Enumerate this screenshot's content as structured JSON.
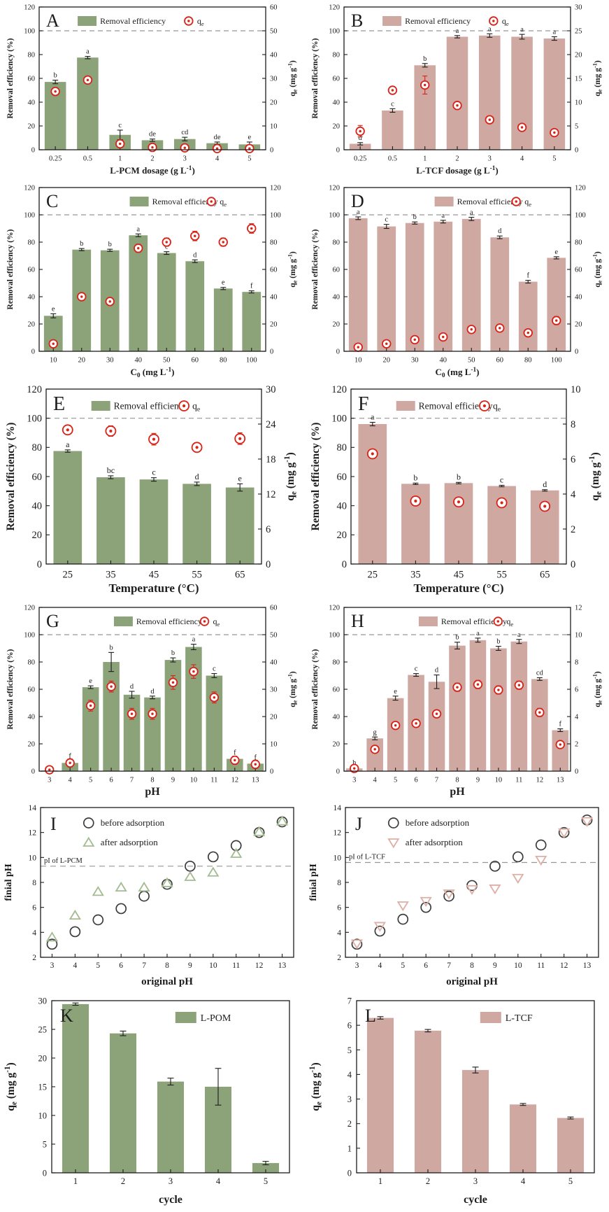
{
  "colors": {
    "green_bar": "#8ca379",
    "pink_bar": "#cfa8a2",
    "qe_red": "#d92318",
    "dash_gray": "#969696",
    "axis_black": "#1c1c1c",
    "scatter_circle": "#3c3c3c",
    "green_triangle": "#a3bb90",
    "pink_triangle": "#ddafa7"
  },
  "chart_data": [
    {
      "id": "A",
      "type": "dual-bar",
      "letter": "A",
      "style": "small",
      "bar_color_key": "green_bar",
      "categories": [
        "0.25",
        "0.5",
        "1",
        "2",
        "3",
        "4",
        "5"
      ],
      "bars": [
        57,
        77.5,
        12.5,
        8,
        9,
        5.5,
        4.5
      ],
      "bar_errors": [
        1.5,
        1,
        4,
        1,
        1.5,
        1,
        2
      ],
      "bar_letters": [
        "b",
        "a",
        "c",
        "de",
        "cd",
        "de",
        "e"
      ],
      "qe": [
        24.5,
        29.3,
        2.5,
        1.0,
        0.8,
        0.5,
        0.5
      ],
      "qe_errors": [
        1.5,
        1,
        1.5,
        0.8,
        0.8,
        0.5,
        0.8
      ],
      "left_ylim": [
        0,
        120
      ],
      "left_ticks": [
        0,
        20,
        40,
        60,
        80,
        100,
        120
      ],
      "right_ylim": [
        0,
        60
      ],
      "right_ticks": [
        0,
        10,
        20,
        30,
        40,
        50,
        60
      ],
      "dash_y": 100,
      "left_label": "Removal efficiency (%)",
      "right_label": "q_{e} (mg g^{-1})",
      "xlabel": "L-PCM dosage (g L^{-1})",
      "xtitle_size": 13,
      "legend_bar": "Removal efficiency",
      "legend_qe": "q_{e}",
      "legend_pos": [
        0.17,
        0.66
      ]
    },
    {
      "id": "B",
      "type": "dual-bar",
      "letter": "B",
      "style": "small",
      "bar_color_key": "pink_bar",
      "categories": [
        "0.25",
        "0.5",
        "1",
        "2",
        "3",
        "4",
        "5"
      ],
      "bars": [
        5,
        33,
        71,
        95,
        96,
        95,
        93.5
      ],
      "bar_errors": [
        1,
        1.5,
        1.5,
        1,
        1.5,
        2,
        1.5
      ],
      "bar_letters": [
        "d",
        "c",
        "b",
        "a",
        "a",
        "a",
        "a"
      ],
      "qe": [
        3.9,
        12.5,
        13.6,
        9.3,
        6.3,
        4.7,
        3.6
      ],
      "qe_errors": [
        1.2,
        0.8,
        1.9,
        0.6,
        0.6,
        0.6,
        0.6
      ],
      "left_ylim": [
        0,
        120
      ],
      "left_ticks": [
        0,
        20,
        40,
        60,
        80,
        100,
        120
      ],
      "right_ylim": [
        0,
        30
      ],
      "right_ticks": [
        0,
        5,
        10,
        15,
        20,
        25,
        30
      ],
      "dash_y": 100,
      "left_label": "Removal efficiency (%)",
      "right_label": "q_{e} (mg g^{-1})",
      "xlabel": "L-TCF dosage (g L^{-1})",
      "xtitle_size": 13,
      "legend_bar": "Removal efficiency",
      "legend_qe": "q_{e}",
      "legend_pos": [
        0.17,
        0.66
      ]
    },
    {
      "id": "C",
      "type": "dual-bar",
      "letter": "C",
      "style": "small",
      "bar_color_key": "green_bar",
      "categories": [
        "10",
        "20",
        "30",
        "40",
        "50",
        "60",
        "80",
        "100"
      ],
      "bars": [
        26,
        74.5,
        74,
        85,
        72,
        66,
        46,
        43.5
      ],
      "bar_errors": [
        1.5,
        0.8,
        0.8,
        1,
        1,
        1,
        0.8,
        0.8
      ],
      "bar_letters": [
        "e",
        "b",
        "b",
        "a",
        "c",
        "d",
        "e",
        "f"
      ],
      "qe": [
        5.5,
        40,
        36.5,
        75.5,
        80,
        84.5,
        80,
        90
      ],
      "qe_errors": [
        2,
        2.5,
        2.5,
        3,
        3,
        3.5,
        3,
        3.5
      ],
      "left_ylim": [
        0,
        120
      ],
      "left_ticks": [
        0,
        20,
        40,
        60,
        80,
        100,
        120
      ],
      "right_ylim": [
        0,
        120
      ],
      "right_ticks": [
        0,
        20,
        40,
        60,
        80,
        100,
        120
      ],
      "dash_y": 100,
      "left_label": "Removal efficiency (%)",
      "right_label": "q_{e} (mg g^{-1})",
      "xlabel": "C_{0} (mg L^{-1})",
      "xtitle_size": 13,
      "legend_bar": "Removal efficiency",
      "legend_qe": "q_{e}",
      "legend_pos": [
        0.4,
        0.76
      ]
    },
    {
      "id": "D",
      "type": "dual-bar",
      "letter": "D",
      "style": "small",
      "bar_color_key": "pink_bar",
      "categories": [
        "10",
        "20",
        "30",
        "40",
        "50",
        "60",
        "80",
        "100"
      ],
      "bars": [
        97.5,
        91.5,
        94,
        95,
        97,
        83.5,
        51,
        68.5
      ],
      "bar_errors": [
        1,
        1.5,
        0.8,
        1,
        1.2,
        1,
        1,
        0.8
      ],
      "bar_letters": [
        "a",
        "c",
        "b",
        "a",
        "a",
        "d",
        "f",
        "e"
      ],
      "qe": [
        3,
        5.5,
        8.5,
        10.5,
        16,
        17,
        13.5,
        22.5
      ],
      "qe_errors": [
        1.5,
        1.5,
        2,
        2,
        2.5,
        2.5,
        2,
        3
      ],
      "left_ylim": [
        0,
        120
      ],
      "left_ticks": [
        0,
        20,
        40,
        60,
        80,
        100,
        120
      ],
      "right_ylim": [
        0,
        120
      ],
      "right_ticks": [
        0,
        20,
        40,
        60,
        80,
        100,
        120
      ],
      "dash_y": 100,
      "left_label": "Removal efficiency (%)",
      "right_label": "q_{e} (mg g^{-1})",
      "xlabel": "C_{0} (mg L^{-1})",
      "xtitle_size": 13,
      "legend_bar": "Removal efficiency",
      "legend_qe": "q_{e}",
      "legend_pos": [
        0.4,
        0.76
      ]
    },
    {
      "id": "E",
      "type": "dual-bar",
      "letter": "E",
      "style": "big",
      "bar_color_key": "green_bar",
      "categories": [
        "25",
        "35",
        "45",
        "55",
        "65"
      ],
      "bars": [
        77.5,
        59.5,
        58,
        55,
        52.5
      ],
      "bar_errors": [
        0.8,
        1,
        1.2,
        1.2,
        2.5
      ],
      "bar_letters": [
        "a",
        "bc",
        "c",
        "d",
        "e"
      ],
      "qe": [
        23,
        22.8,
        21.4,
        20,
        21.5
      ],
      "qe_errors": [
        0.6,
        0.9,
        1,
        0.8,
        1
      ],
      "left_ylim": [
        0,
        120
      ],
      "left_ticks": [
        0,
        20,
        40,
        60,
        80,
        100,
        120
      ],
      "right_ylim": [
        0,
        30
      ],
      "right_ticks": [
        0,
        6,
        12,
        18,
        24,
        30
      ],
      "dash_y": 100,
      "left_label": "Removal efficiency (%)",
      "right_label": "q_{e} (mg g^{-1})",
      "xlabel": "Temperature (°C)",
      "xtitle_size": 17,
      "legend_bar": "Removal efficiency",
      "legend_qe": "q_{e}",
      "legend_pos": [
        0.21,
        0.64
      ]
    },
    {
      "id": "F",
      "type": "dual-bar",
      "letter": "F",
      "style": "big",
      "bar_color_key": "pink_bar",
      "categories": [
        "25",
        "35",
        "45",
        "55",
        "65"
      ],
      "bars": [
        96,
        55,
        55.5,
        53.5,
        50.5
      ],
      "bar_errors": [
        1.2,
        0.5,
        0.5,
        0.5,
        0.5
      ],
      "bar_letters": [
        "a",
        "b",
        "b",
        "c",
        "d"
      ],
      "qe": [
        6.3,
        3.6,
        3.55,
        3.5,
        3.3
      ],
      "qe_errors": [
        0.25,
        0.2,
        0.2,
        0.2,
        0.2
      ],
      "left_ylim": [
        0,
        120
      ],
      "left_ticks": [
        0,
        20,
        40,
        60,
        80,
        100,
        120
      ],
      "right_ylim": [
        0,
        10
      ],
      "right_ticks": [
        0,
        2,
        4,
        6,
        8,
        10
      ],
      "dash_y": 100,
      "left_label": "Removal efficiency (%)",
      "right_label": "q_{e} (mg g^{-1})",
      "xlabel": "Temperature (°C)",
      "xtitle_size": 17,
      "legend_bar": "Removal efficiency",
      "legend_qe": "q_{e}",
      "legend_pos": [
        0.21,
        0.62
      ]
    },
    {
      "id": "G",
      "type": "dual-bar",
      "letter": "G",
      "style": "small",
      "bar_color_key": "green_bar",
      "categories": [
        "3",
        "4",
        "5",
        "6",
        "7",
        "8",
        "9",
        "10",
        "11",
        "12",
        "13"
      ],
      "bars": [
        0.5,
        6,
        61.5,
        80,
        56,
        54,
        81.5,
        91,
        70,
        9,
        5.5
      ],
      "bar_errors": [
        0.3,
        1.5,
        1,
        7,
        2.5,
        1,
        1.5,
        2,
        1.5,
        1,
        1
      ],
      "bar_letters": [
        "",
        "f",
        "e",
        "b",
        "d",
        "d",
        "b",
        "a",
        "c",
        "f",
        "f"
      ],
      "qe": [
        0.5,
        3,
        24,
        31,
        21,
        21,
        32.5,
        36.5,
        27,
        4,
        2.5
      ],
      "qe_errors": [
        1,
        1.5,
        2,
        2,
        2,
        2,
        2.5,
        2.5,
        2,
        1.5,
        1.5
      ],
      "left_ylim": [
        0,
        120
      ],
      "left_ticks": [
        0,
        20,
        40,
        60,
        80,
        100,
        120
      ],
      "right_ylim": [
        0,
        60
      ],
      "right_ticks": [
        0,
        10,
        20,
        30,
        40,
        50,
        60
      ],
      "dash_y": 100,
      "left_label": "Removal efficiency (%)",
      "right_label": "q_{e} (mg g^{-1})",
      "xlabel": "pH",
      "xtitle_size": 16,
      "legend_bar": "Removal efficiency",
      "legend_qe": "q_{e}",
      "legend_pos": [
        0.33,
        0.73
      ]
    },
    {
      "id": "H",
      "type": "dual-bar",
      "letter": "H",
      "style": "small",
      "bar_color_key": "pink_bar",
      "categories": [
        "3",
        "4",
        "5",
        "6",
        "7",
        "8",
        "9",
        "10",
        "11",
        "12",
        "13"
      ],
      "bars": [
        2,
        24,
        53.5,
        70.5,
        65.5,
        92,
        96,
        90,
        95,
        67.5,
        30
      ],
      "bar_errors": [
        0.5,
        1,
        1.5,
        1,
        5,
        2.5,
        1.5,
        1.5,
        1.5,
        1,
        1
      ],
      "bar_letters": [
        "h",
        "g",
        "e",
        "c",
        "d",
        "b",
        "a",
        "b",
        "a",
        "cd",
        "f"
      ],
      "qe": [
        0.2,
        1.6,
        3.35,
        3.5,
        4.2,
        6.15,
        6.35,
        5.95,
        6.3,
        4.3,
        1.95
      ],
      "qe_errors": [
        0.15,
        0.2,
        0.25,
        0.2,
        0.25,
        0.3,
        0.3,
        0.3,
        0.3,
        0.3,
        0.2
      ],
      "left_ylim": [
        0,
        120
      ],
      "left_ticks": [
        0,
        20,
        40,
        60,
        80,
        100,
        120
      ],
      "right_ylim": [
        0,
        12
      ],
      "right_ticks": [
        0,
        2,
        4,
        6,
        8,
        10,
        12
      ],
      "dash_y": 100,
      "left_label": "Removal efficiency (%)",
      "right_label": "q_{e} (mg g^{-1})",
      "xlabel": "pH",
      "xtitle_size": 16,
      "legend_bar": "Removal efficiency",
      "legend_qe": "q_{e}",
      "legend_pos": [
        0.33,
        0.68
      ]
    },
    {
      "id": "I",
      "type": "scatter",
      "letter": "I",
      "accent_key": "green_triangle",
      "after_marker": "triangle-up",
      "x": [
        3,
        4,
        5,
        6,
        7,
        8,
        9,
        10,
        11,
        12,
        13
      ],
      "before": [
        3.05,
        4.05,
        5.0,
        5.9,
        6.9,
        7.85,
        9.3,
        10.05,
        10.95,
        12.0,
        12.85
      ],
      "after": [
        3.6,
        5.35,
        7.25,
        7.6,
        7.6,
        7.95,
        8.45,
        8.8,
        10.3,
        12.05,
        12.9
      ],
      "dash_y": 9.3,
      "dash_label": "pI of L-PCM",
      "ylim": [
        2,
        14
      ],
      "yticks": [
        2,
        4,
        6,
        8,
        10,
        12,
        14
      ],
      "xlabel": "original pH",
      "ylabel": "finial pH",
      "legend_before": "before adsorption",
      "legend_after": "after adsorption"
    },
    {
      "id": "J",
      "type": "scatter",
      "letter": "J",
      "accent_key": "pink_triangle",
      "after_marker": "triangle-down",
      "x": [
        3,
        4,
        5,
        6,
        7,
        8,
        9,
        10,
        11,
        12,
        13
      ],
      "before": [
        3.05,
        4.1,
        5.05,
        6.0,
        6.9,
        7.75,
        9.3,
        10.05,
        11.0,
        12.0,
        13.0
      ],
      "after": [
        3.1,
        4.5,
        6.15,
        6.5,
        7.1,
        7.45,
        7.5,
        8.35,
        9.8,
        12.0,
        12.9
      ],
      "dash_y": 9.6,
      "dash_label": "pI of L-TCF",
      "ylim": [
        2,
        14
      ],
      "yticks": [
        2,
        4,
        6,
        8,
        10,
        12,
        14
      ],
      "xlabel": "original pH",
      "ylabel": "finial pH",
      "legend_before": "before adsorption",
      "legend_after": "after adsorption"
    },
    {
      "id": "K",
      "type": "bar",
      "letter": "K",
      "bar_color_key": "green_bar",
      "categories": [
        "1",
        "2",
        "3",
        "4",
        "5"
      ],
      "values": [
        29.4,
        24.3,
        15.9,
        15.0,
        1.7
      ],
      "errors": [
        0.2,
        0.4,
        0.6,
        3.2,
        0.3
      ],
      "legend": "L-POM",
      "ylim": [
        0,
        30
      ],
      "yticks": [
        0,
        5,
        10,
        15,
        20,
        25,
        30
      ],
      "xlabel": "cycle",
      "ylabel": "q_{e} (mg g^{-1})"
    },
    {
      "id": "L",
      "type": "bar",
      "letter": "L",
      "bar_color_key": "pink_bar",
      "categories": [
        "1",
        "2",
        "3",
        "4",
        "5"
      ],
      "values": [
        6.3,
        5.78,
        4.18,
        2.78,
        2.23
      ],
      "errors": [
        0.05,
        0.05,
        0.12,
        0.04,
        0.04
      ],
      "legend": "L-TCF",
      "ylim": [
        0,
        7
      ],
      "yticks": [
        0,
        1,
        2,
        3,
        4,
        5,
        6,
        7
      ],
      "xlabel": "cycle",
      "ylabel": "q_{e} (mg g^{-1})"
    }
  ]
}
